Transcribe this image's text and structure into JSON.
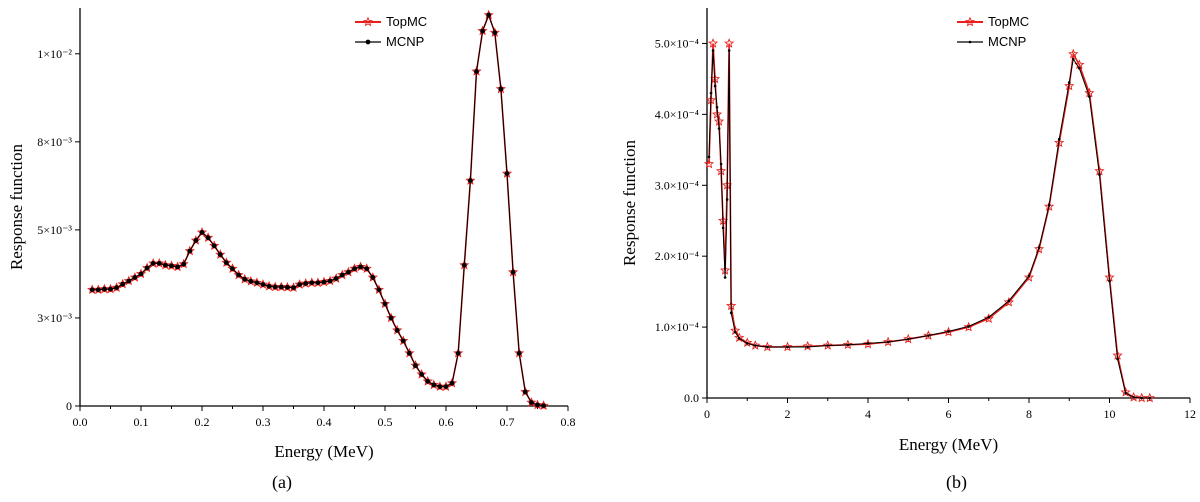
{
  "chart_data": [
    {
      "type": "line",
      "caption": "(a)",
      "xlabel": "Energy (MeV)",
      "ylabel": "Response function",
      "xlim": [
        0.0,
        0.8
      ],
      "ylim": [
        0,
        0.0113
      ],
      "xticks": [
        0.0,
        0.1,
        0.2,
        0.3,
        0.4,
        0.5,
        0.6,
        0.7,
        0.8
      ],
      "xtick_labels": [
        "0.0",
        "0.1",
        "0.2",
        "0.3",
        "0.4",
        "0.5",
        "0.6",
        "0.7",
        "0.8"
      ],
      "yticks": [
        0,
        0.0025,
        0.005,
        0.0075,
        0.01,
        0.0125
      ],
      "ytick_labels": [
        "0",
        "3×10⁻³",
        "5×10⁻³",
        "8×10⁻³",
        "1×10⁻²",
        "1×10⁻²"
      ],
      "legend": "top-center",
      "series": [
        {
          "name": "TopMC",
          "color": "#e8201b",
          "marker": "star-open",
          "x": [
            0.02,
            0.03,
            0.04,
            0.05,
            0.06,
            0.07,
            0.08,
            0.09,
            0.1,
            0.11,
            0.12,
            0.13,
            0.14,
            0.15,
            0.16,
            0.17,
            0.18,
            0.19,
            0.2,
            0.21,
            0.22,
            0.23,
            0.24,
            0.25,
            0.26,
            0.27,
            0.28,
            0.29,
            0.3,
            0.31,
            0.32,
            0.33,
            0.34,
            0.35,
            0.36,
            0.37,
            0.38,
            0.39,
            0.4,
            0.41,
            0.42,
            0.43,
            0.44,
            0.45,
            0.46,
            0.47,
            0.48,
            0.49,
            0.5,
            0.51,
            0.52,
            0.53,
            0.54,
            0.55,
            0.56,
            0.57,
            0.58,
            0.59,
            0.6,
            0.61,
            0.62,
            0.63,
            0.64,
            0.65,
            0.66,
            0.67,
            0.68,
            0.69,
            0.7,
            0.71,
            0.72,
            0.73,
            0.74,
            0.75,
            0.76
          ],
          "y": [
            0.0033,
            0.0033,
            0.00332,
            0.00332,
            0.00336,
            0.00346,
            0.00355,
            0.00365,
            0.00375,
            0.00392,
            0.00405,
            0.00405,
            0.004,
            0.00398,
            0.00395,
            0.00403,
            0.0044,
            0.0047,
            0.00493,
            0.00478,
            0.00455,
            0.0043,
            0.00407,
            0.0039,
            0.00372,
            0.0036,
            0.00354,
            0.0035,
            0.00345,
            0.0034,
            0.00338,
            0.00338,
            0.00337,
            0.00336,
            0.00345,
            0.00348,
            0.0035,
            0.0035,
            0.00352,
            0.00355,
            0.00362,
            0.00372,
            0.0038,
            0.0039,
            0.00395,
            0.0039,
            0.00365,
            0.0033,
            0.0029,
            0.0025,
            0.00215,
            0.00185,
            0.0015,
            0.00115,
            0.0009,
            0.0007,
            0.0006,
            0.00055,
            0.00055,
            0.00065,
            0.0015,
            0.004,
            0.0064,
            0.0095,
            0.01065,
            0.0111,
            0.0106,
            0.009,
            0.0066,
            0.0038,
            0.0015,
            0.0004,
            0.0001,
            3e-05,
            1e-05
          ]
        },
        {
          "name": "MCNP",
          "color": "#000000",
          "marker": "circle-filled",
          "x": [
            0.02,
            0.03,
            0.04,
            0.05,
            0.06,
            0.07,
            0.08,
            0.09,
            0.1,
            0.11,
            0.12,
            0.13,
            0.14,
            0.15,
            0.16,
            0.17,
            0.18,
            0.19,
            0.2,
            0.21,
            0.22,
            0.23,
            0.24,
            0.25,
            0.26,
            0.27,
            0.28,
            0.29,
            0.3,
            0.31,
            0.32,
            0.33,
            0.34,
            0.35,
            0.36,
            0.37,
            0.38,
            0.39,
            0.4,
            0.41,
            0.42,
            0.43,
            0.44,
            0.45,
            0.46,
            0.47,
            0.48,
            0.49,
            0.5,
            0.51,
            0.52,
            0.53,
            0.54,
            0.55,
            0.56,
            0.57,
            0.58,
            0.59,
            0.6,
            0.61,
            0.62,
            0.63,
            0.64,
            0.65,
            0.66,
            0.67,
            0.68,
            0.69,
            0.7,
            0.71,
            0.72,
            0.73,
            0.74,
            0.75,
            0.76
          ],
          "y": [
            0.0033,
            0.0033,
            0.00332,
            0.00332,
            0.00336,
            0.00346,
            0.00355,
            0.00365,
            0.00375,
            0.00392,
            0.00405,
            0.00405,
            0.004,
            0.00398,
            0.00395,
            0.00403,
            0.0044,
            0.0047,
            0.00493,
            0.00478,
            0.00455,
            0.0043,
            0.00407,
            0.0039,
            0.00372,
            0.0036,
            0.00354,
            0.0035,
            0.00345,
            0.0034,
            0.00338,
            0.00338,
            0.00337,
            0.00336,
            0.00345,
            0.00348,
            0.0035,
            0.0035,
            0.00352,
            0.00355,
            0.00362,
            0.00372,
            0.0038,
            0.0039,
            0.00395,
            0.0039,
            0.00365,
            0.0033,
            0.0029,
            0.0025,
            0.00215,
            0.00185,
            0.0015,
            0.00115,
            0.0009,
            0.0007,
            0.0006,
            0.00055,
            0.00055,
            0.00065,
            0.0015,
            0.004,
            0.0064,
            0.0095,
            0.01065,
            0.0111,
            0.0106,
            0.009,
            0.0066,
            0.0038,
            0.0015,
            0.0004,
            0.0001,
            3e-05,
            1e-05
          ]
        }
      ]
    },
    {
      "type": "line",
      "caption": "(b)",
      "xlabel": "Energy (MeV)",
      "ylabel": "Response function",
      "xlim": [
        0,
        12
      ],
      "ylim": [
        0,
        0.00055
      ],
      "xticks": [
        0,
        2,
        4,
        6,
        8,
        10,
        12
      ],
      "xtick_labels": [
        "0",
        "2",
        "4",
        "6",
        "8",
        "10",
        "12"
      ],
      "yticks": [
        0,
        0.0001,
        0.0002,
        0.0003,
        0.0004,
        0.0005
      ],
      "ytick_labels": [
        "0.0",
        "1.0×10⁻⁴",
        "2.0×10⁻⁴",
        "3.0×10⁻⁴",
        "4.0×10⁻⁴",
        "5.0×10⁻⁴"
      ],
      "legend": "top-center",
      "series": [
        {
          "name": "TopMC",
          "color": "#e8201b",
          "marker": "star-open",
          "x": [
            0.05,
            0.1,
            0.15,
            0.2,
            0.25,
            0.3,
            0.35,
            0.4,
            0.45,
            0.5,
            0.55,
            0.6,
            0.7,
            0.8,
            1.0,
            1.2,
            1.5,
            2.0,
            2.5,
            3.0,
            3.5,
            4.0,
            4.5,
            5.0,
            5.5,
            6.0,
            6.5,
            7.0,
            7.5,
            8.0,
            8.25,
            8.5,
            8.75,
            9.0,
            9.1,
            9.25,
            9.5,
            9.75,
            10.0,
            10.2,
            10.4,
            10.6,
            10.8,
            11.0
          ],
          "y": [
            0.00033,
            0.00042,
            0.0005,
            0.00045,
            0.0004,
            0.00039,
            0.00032,
            0.00025,
            0.00018,
            0.0003,
            0.0005,
            0.00013,
            9.5e-05,
            8.5e-05,
            7.8e-05,
            7.4e-05,
            7.2e-05,
            7.2e-05,
            7.3e-05,
            7.4e-05,
            7.5e-05,
            7.6e-05,
            7.9e-05,
            8.3e-05,
            8.8e-05,
            9.3e-05,
            0.0001,
            0.000112,
            0.000135,
            0.00017,
            0.00021,
            0.00027,
            0.00036,
            0.00044,
            0.000485,
            0.00047,
            0.00043,
            0.00032,
            0.00017,
            6e-05,
            8e-06,
            1e-06,
            0.0,
            0.0
          ]
        },
        {
          "name": "MCNP",
          "color": "#000000",
          "marker": "dot-small",
          "x": [
            0.05,
            0.1,
            0.15,
            0.2,
            0.25,
            0.3,
            0.35,
            0.4,
            0.45,
            0.5,
            0.55,
            0.6,
            0.7,
            0.8,
            1.0,
            1.2,
            1.5,
            2.0,
            2.5,
            3.0,
            3.5,
            4.0,
            4.5,
            5.0,
            5.5,
            6.0,
            6.5,
            7.0,
            7.5,
            8.0,
            8.25,
            8.5,
            8.75,
            9.0,
            9.1,
            9.25,
            9.5,
            9.75,
            10.0,
            10.2,
            10.4,
            10.6,
            10.8,
            11.0
          ],
          "y": [
            0.00034,
            0.00043,
            0.00049,
            0.00044,
            0.00041,
            0.00038,
            0.00033,
            0.00024,
            0.00017,
            0.00028,
            0.00049,
            0.00012,
            9.3e-05,
            8.4e-05,
            7.7e-05,
            7.4e-05,
            7.2e-05,
            7.2e-05,
            7.2e-05,
            7.4e-05,
            7.5e-05,
            7.7e-05,
            7.9e-05,
            8.3e-05,
            8.8e-05,
            9.4e-05,
            0.000101,
            0.000114,
            0.000137,
            0.000172,
            0.000212,
            0.000272,
            0.000365,
            0.000445,
            0.000478,
            0.000465,
            0.000425,
            0.000315,
            0.000165,
            5.5e-05,
            7e-06,
            1e-06,
            0.0,
            0.0
          ]
        }
      ]
    }
  ]
}
